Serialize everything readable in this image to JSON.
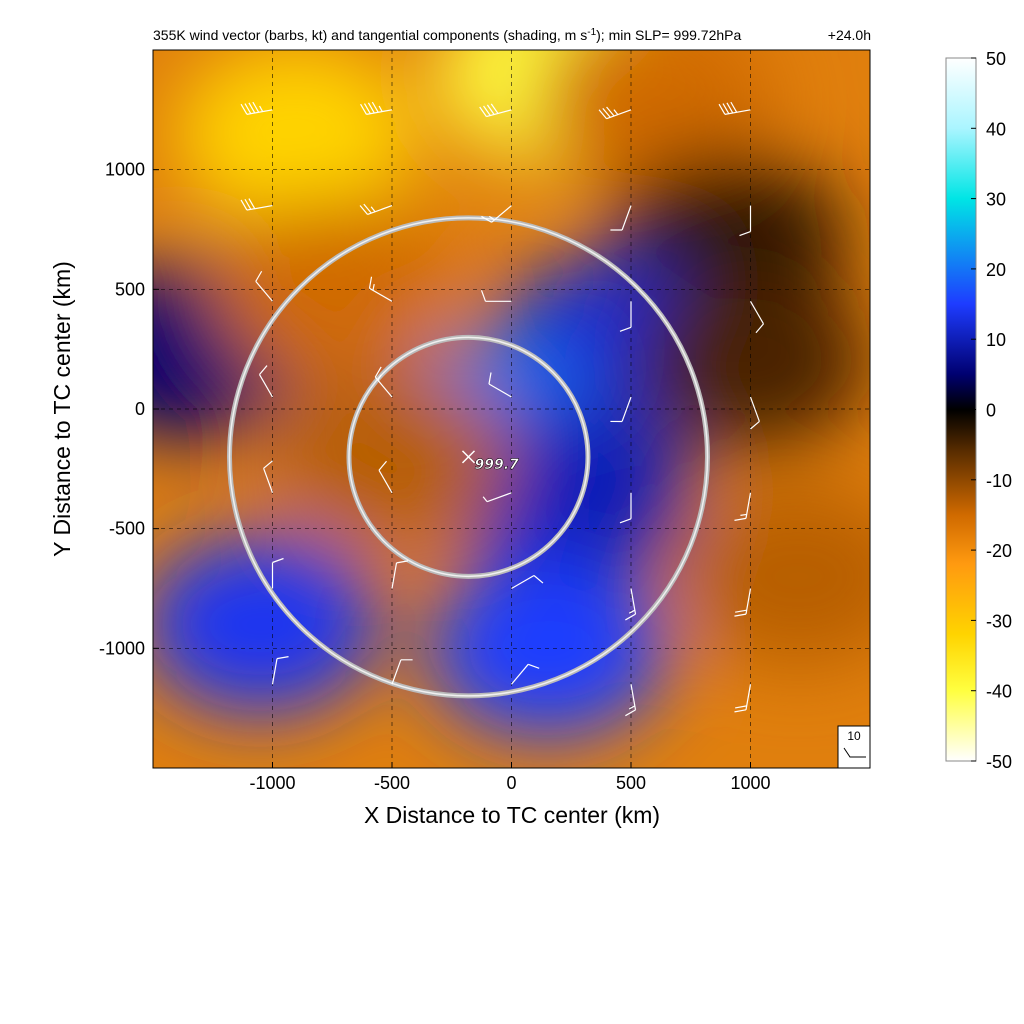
{
  "chart_data": {
    "type": "heatmap",
    "title": "355K wind vector (barbs, kt) and tangential components (shading, m s",
    "title_superscript": "-1",
    "title_suffix": "); min SLP= 999.72hPa",
    "forecast_time": "+24.0h",
    "xlabel": "X Distance to TC center (km)",
    "ylabel": "Y Distance to TC center (km)",
    "xlim": [
      -1500,
      1500
    ],
    "ylim": [
      -1500,
      1500
    ],
    "x_ticks": [
      -1000,
      -500,
      0,
      500,
      1000
    ],
    "x_tick_labels": [
      "-1000",
      "-500",
      "0",
      "500",
      "1000"
    ],
    "y_ticks": [
      -1000,
      -500,
      0,
      500,
      1000
    ],
    "y_tick_labels": [
      "-1000",
      "-500",
      "0",
      "500",
      "1000"
    ],
    "grid": "dashed",
    "colorbar": {
      "min": -50,
      "max": 50,
      "ticks": [
        50,
        40,
        30,
        20,
        10,
        0,
        -10,
        -20,
        -30,
        -40,
        -50
      ],
      "tick_labels": [
        "50",
        "40",
        "30",
        "20",
        "10",
        "0",
        "-10",
        "-20",
        "-30",
        "-40",
        "-50"
      ],
      "colors": [
        "#ffffff",
        "#ffff00",
        "#ff8c00",
        "#000000",
        "#0000cd",
        "#00ffff",
        "#ffffff"
      ]
    },
    "center_marker": {
      "x": -180,
      "y": -200,
      "label": "999.7"
    },
    "range_rings": [
      {
        "x": -180,
        "y": -200,
        "radius_km": 500
      },
      {
        "x": -180,
        "y": -200,
        "radius_km": 1000
      }
    ],
    "reference_barb": {
      "label": "10"
    },
    "shading_features": [
      {
        "x": 200,
        "y": 1400,
        "value": -45
      },
      {
        "x": -900,
        "y": 1150,
        "value": -35
      },
      {
        "x": 600,
        "y": 1300,
        "value": -20
      },
      {
        "x": 900,
        "y": 700,
        "value": -5
      },
      {
        "x": 400,
        "y": 250,
        "value": 12
      },
      {
        "x": -100,
        "y": -100,
        "value": 20
      },
      {
        "x": 250,
        "y": -350,
        "value": 10
      },
      {
        "x": -1050,
        "y": -900,
        "value": 14
      },
      {
        "x": 150,
        "y": -1000,
        "value": 15
      },
      {
        "x": -1350,
        "y": 250,
        "value": 5
      },
      {
        "x": -500,
        "y": -200,
        "value": -18
      },
      {
        "x": -750,
        "y": 500,
        "value": -20
      },
      {
        "x": 1200,
        "y": -700,
        "value": -18
      },
      {
        "x": 1000,
        "y": 200,
        "value": -8
      }
    ],
    "wind_barbs": [
      {
        "x": -1000,
        "y": 1250,
        "speed_kt": 45,
        "dir_deg": 260
      },
      {
        "x": -500,
        "y": 1250,
        "speed_kt": 45,
        "dir_deg": 260
      },
      {
        "x": 0,
        "y": 1250,
        "speed_kt": 40,
        "dir_deg": 255
      },
      {
        "x": 500,
        "y": 1250,
        "speed_kt": 35,
        "dir_deg": 250
      },
      {
        "x": 1000,
        "y": 1250,
        "speed_kt": 40,
        "dir_deg": 260
      },
      {
        "x": -1000,
        "y": 850,
        "speed_kt": 30,
        "dir_deg": 260
      },
      {
        "x": -500,
        "y": 850,
        "speed_kt": 25,
        "dir_deg": 250
      },
      {
        "x": 0,
        "y": 850,
        "speed_kt": 15,
        "dir_deg": 230
      },
      {
        "x": 500,
        "y": 850,
        "speed_kt": 10,
        "dir_deg": 200
      },
      {
        "x": 1000,
        "y": 850,
        "speed_kt": 10,
        "dir_deg": 180
      },
      {
        "x": -1000,
        "y": 450,
        "speed_kt": 10,
        "dir_deg": 320
      },
      {
        "x": -500,
        "y": 450,
        "speed_kt": 15,
        "dir_deg": 300
      },
      {
        "x": 0,
        "y": 450,
        "speed_kt": 10,
        "dir_deg": 270
      },
      {
        "x": 500,
        "y": 450,
        "speed_kt": 10,
        "dir_deg": 180
      },
      {
        "x": 1000,
        "y": 450,
        "speed_kt": 10,
        "dir_deg": 150
      },
      {
        "x": -1000,
        "y": 50,
        "speed_kt": 10,
        "dir_deg": 330
      },
      {
        "x": -500,
        "y": 50,
        "speed_kt": 15,
        "dir_deg": 320
      },
      {
        "x": 0,
        "y": 50,
        "speed_kt": 10,
        "dir_deg": 300
      },
      {
        "x": 500,
        "y": 50,
        "speed_kt": 10,
        "dir_deg": 200
      },
      {
        "x": 1000,
        "y": 50,
        "speed_kt": 10,
        "dir_deg": 160
      },
      {
        "x": -1000,
        "y": -350,
        "speed_kt": 10,
        "dir_deg": 340
      },
      {
        "x": -500,
        "y": -350,
        "speed_kt": 10,
        "dir_deg": 330
      },
      {
        "x": 0,
        "y": -350,
        "speed_kt": 5,
        "dir_deg": 250
      },
      {
        "x": 500,
        "y": -350,
        "speed_kt": 10,
        "dir_deg": 180
      },
      {
        "x": 1000,
        "y": -350,
        "speed_kt": 15,
        "dir_deg": 190
      },
      {
        "x": -1000,
        "y": -750,
        "speed_kt": 10,
        "dir_deg": 0
      },
      {
        "x": -500,
        "y": -750,
        "speed_kt": 10,
        "dir_deg": 10
      },
      {
        "x": 0,
        "y": -750,
        "speed_kt": 10,
        "dir_deg": 60
      },
      {
        "x": 500,
        "y": -750,
        "speed_kt": 15,
        "dir_deg": 170
      },
      {
        "x": 1000,
        "y": -750,
        "speed_kt": 20,
        "dir_deg": 190
      },
      {
        "x": -1000,
        "y": -1150,
        "speed_kt": 10,
        "dir_deg": 10
      },
      {
        "x": -500,
        "y": -1150,
        "speed_kt": 10,
        "dir_deg": 20
      },
      {
        "x": 0,
        "y": -1150,
        "speed_kt": 10,
        "dir_deg": 40
      },
      {
        "x": 500,
        "y": -1150,
        "speed_kt": 15,
        "dir_deg": 170
      },
      {
        "x": 1000,
        "y": -1150,
        "speed_kt": 20,
        "dir_deg": 190
      }
    ]
  }
}
